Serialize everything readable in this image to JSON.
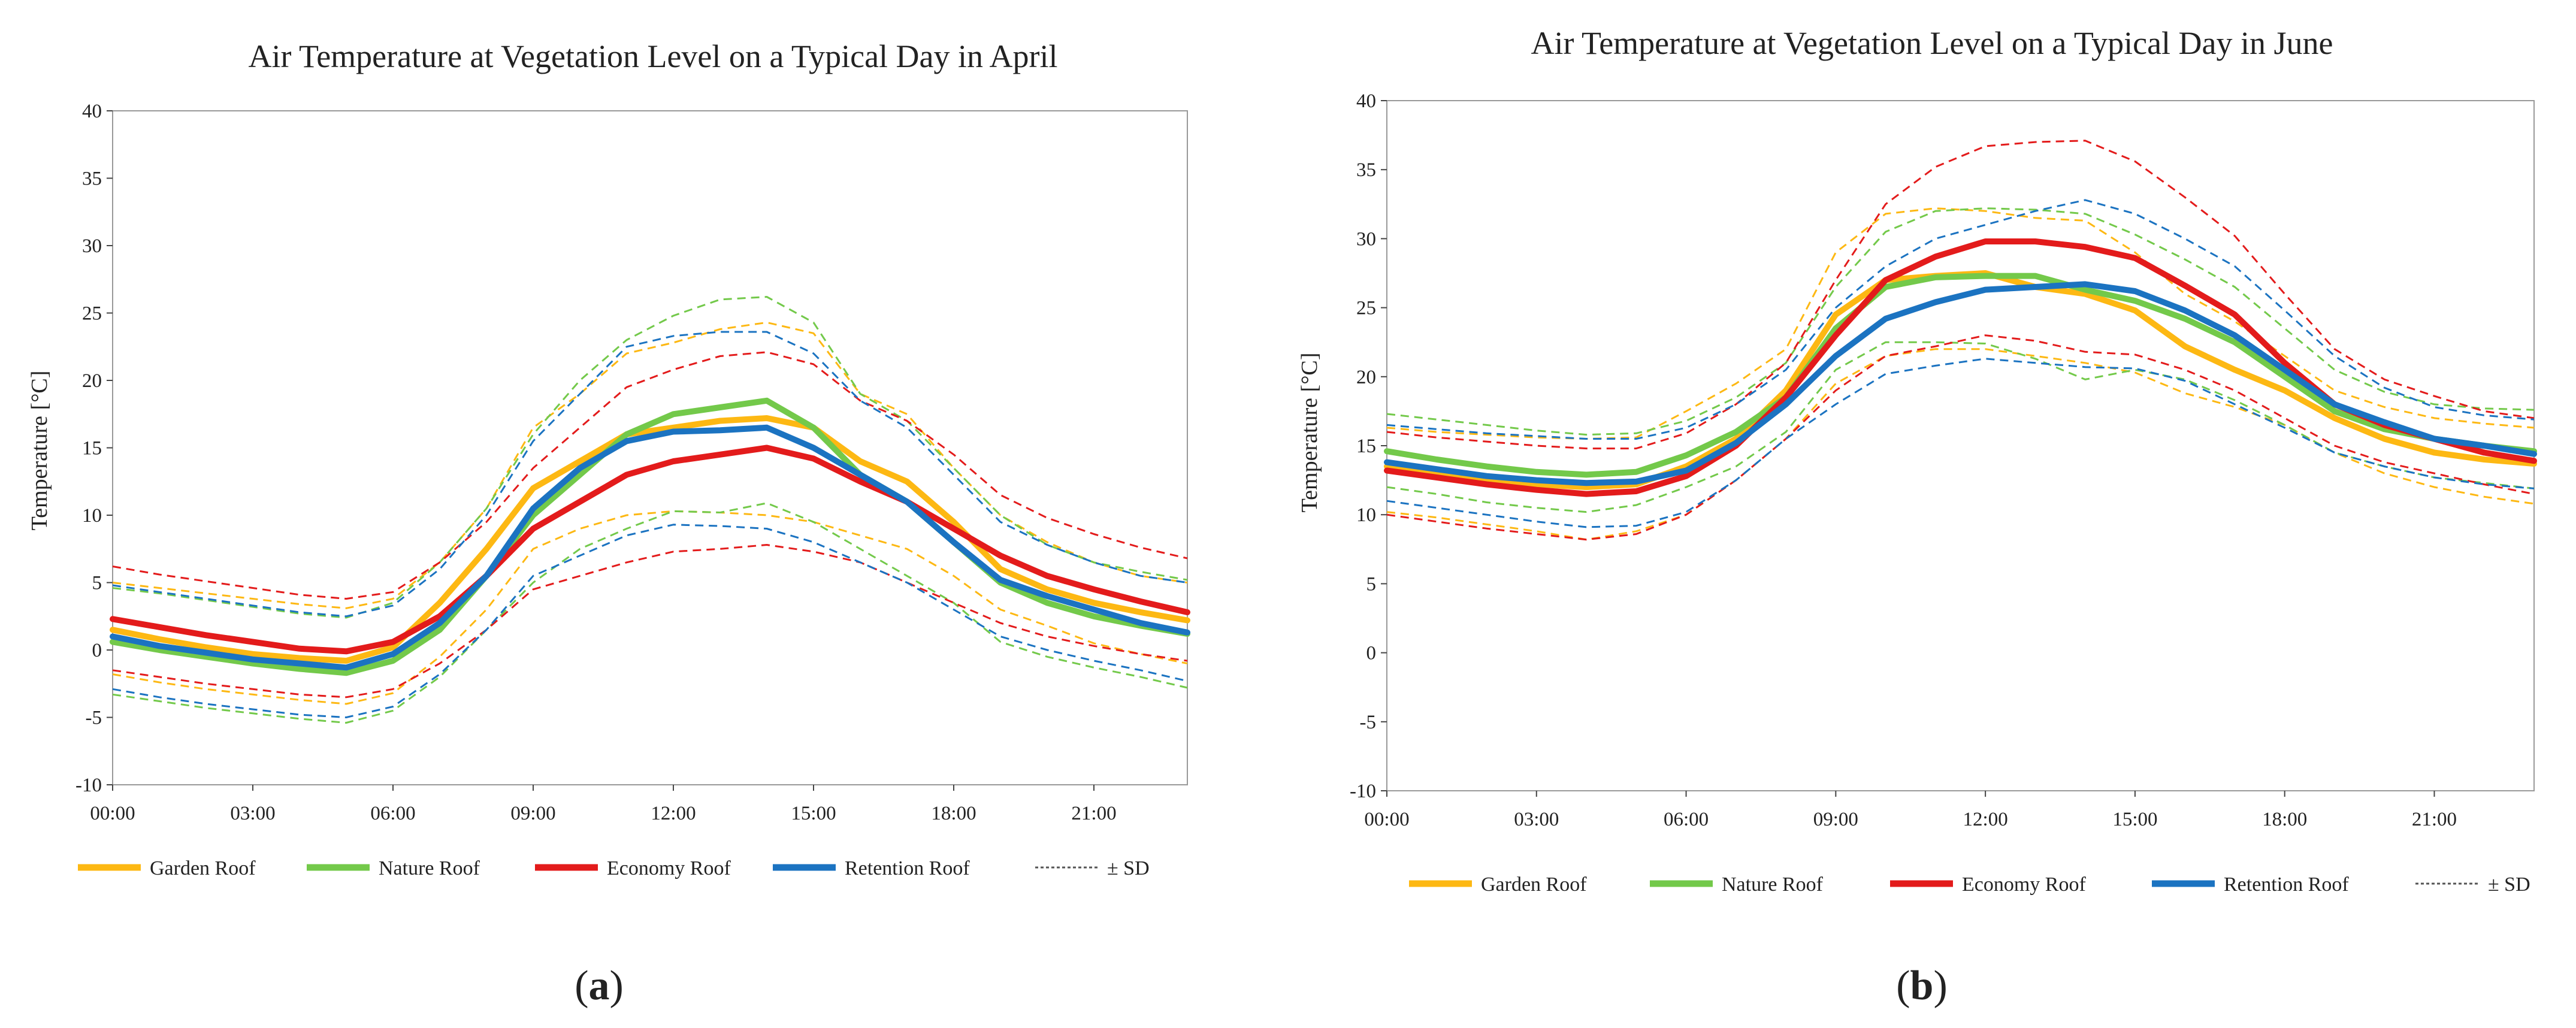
{
  "colors": {
    "garden": "#FDB813",
    "nature": "#73C94A",
    "economy": "#E31B1B",
    "retention": "#1B73C1",
    "sd": "#555555",
    "axis": "#444444",
    "grid": "#999999"
  },
  "legend": {
    "garden": "Garden Roof",
    "nature": "Nature Roof",
    "economy": "Economy Roof",
    "retention": "Retention Roof",
    "sd": "± SD"
  },
  "chart_data": [
    {
      "type": "line",
      "caption_letter": "a",
      "title": "Air Temperature at Vegetation Level on a Typical Day in April",
      "xlabel": "",
      "ylabel": "Temperature [°C]",
      "ylim": [
        -10,
        40
      ],
      "yticks": [
        -10,
        -5,
        0,
        5,
        10,
        15,
        20,
        25,
        30,
        35,
        40
      ],
      "xticks": [
        0,
        3,
        6,
        9,
        12,
        15,
        18,
        21
      ],
      "xtick_labels": [
        "00:00",
        "03:00",
        "06:00",
        "09:00",
        "12:00",
        "15:00",
        "18:00",
        "21:00"
      ],
      "xlim": [
        0,
        23
      ],
      "x": [
        0,
        1,
        2,
        3,
        4,
        5,
        6,
        7,
        8,
        9,
        10,
        11,
        12,
        13,
        14,
        15,
        16,
        17,
        18,
        19,
        20,
        21,
        22,
        23
      ],
      "series": [
        {
          "name": "Garden Roof",
          "color_key": "garden",
          "values": [
            1.5,
            0.8,
            0.2,
            -0.3,
            -0.6,
            -0.8,
            0.2,
            3.5,
            7.5,
            12.0,
            14.0,
            16.0,
            16.5,
            17.0,
            17.2,
            16.5,
            14.0,
            12.5,
            9.5,
            6.0,
            4.5,
            3.5,
            2.8,
            2.2
          ]
        },
        {
          "name": "Nature Roof",
          "color_key": "nature",
          "values": [
            0.6,
            0.0,
            -0.5,
            -1.0,
            -1.4,
            -1.7,
            -0.8,
            1.5,
            5.5,
            10.0,
            13.0,
            16.0,
            17.5,
            18.0,
            18.5,
            16.5,
            13.0,
            11.0,
            8.0,
            5.0,
            3.5,
            2.5,
            1.8,
            1.2
          ]
        },
        {
          "name": "Economy Roof",
          "color_key": "economy",
          "values": [
            2.3,
            1.7,
            1.1,
            0.6,
            0.1,
            -0.1,
            0.6,
            2.5,
            5.5,
            9.0,
            11.0,
            13.0,
            14.0,
            14.5,
            15.0,
            14.2,
            12.5,
            11.0,
            9.0,
            7.0,
            5.5,
            4.5,
            3.6,
            2.8
          ]
        },
        {
          "name": "Retention Roof",
          "color_key": "retention",
          "values": [
            1.0,
            0.3,
            -0.2,
            -0.7,
            -1.0,
            -1.3,
            -0.3,
            2.0,
            5.5,
            10.5,
            13.5,
            15.5,
            16.2,
            16.3,
            16.5,
            15.0,
            13.0,
            11.0,
            8.0,
            5.2,
            4.0,
            3.0,
            2.0,
            1.3
          ]
        }
      ],
      "sd_series": [
        {
          "name": "Garden Roof + SD",
          "color_key": "garden",
          "values": [
            5.0,
            4.6,
            4.2,
            3.8,
            3.4,
            3.1,
            3.8,
            6.5,
            10.5,
            16.5,
            19.0,
            22.0,
            22.8,
            23.8,
            24.3,
            23.5,
            19.0,
            17.5,
            13.5,
            10.0,
            8.0,
            6.5,
            5.5,
            5.0
          ]
        },
        {
          "name": "Garden Roof - SD",
          "color_key": "garden",
          "values": [
            -1.8,
            -2.4,
            -2.9,
            -3.3,
            -3.7,
            -4.0,
            -3.2,
            -0.5,
            3.0,
            7.5,
            9.0,
            10.0,
            10.3,
            10.2,
            10.0,
            9.5,
            8.5,
            7.5,
            5.5,
            3.0,
            1.8,
            0.5,
            -0.3,
            -1.0
          ]
        },
        {
          "name": "Nature Roof + SD",
          "color_key": "nature",
          "values": [
            4.6,
            4.2,
            3.7,
            3.2,
            2.7,
            2.4,
            3.5,
            6.5,
            10.5,
            16.0,
            20.0,
            23.0,
            24.8,
            26.0,
            26.2,
            24.3,
            19.0,
            17.0,
            13.5,
            10.0,
            7.8,
            6.5,
            5.8,
            5.2
          ]
        },
        {
          "name": "Nature Roof - SD",
          "color_key": "nature",
          "values": [
            -3.3,
            -3.8,
            -4.3,
            -4.7,
            -5.1,
            -5.4,
            -4.5,
            -2.0,
            1.5,
            5.0,
            7.5,
            9.0,
            10.3,
            10.2,
            10.9,
            9.5,
            7.5,
            5.5,
            3.5,
            0.6,
            -0.5,
            -1.3,
            -2.0,
            -2.8
          ]
        },
        {
          "name": "Economy Roof + SD",
          "color_key": "economy",
          "values": [
            6.2,
            5.6,
            5.1,
            4.6,
            4.1,
            3.8,
            4.3,
            6.5,
            9.5,
            13.5,
            16.5,
            19.5,
            20.8,
            21.8,
            22.1,
            21.2,
            18.5,
            17.0,
            14.5,
            11.5,
            9.8,
            8.6,
            7.6,
            6.8
          ]
        },
        {
          "name": "Economy Roof - SD",
          "color_key": "economy",
          "values": [
            -1.5,
            -2.0,
            -2.5,
            -2.9,
            -3.3,
            -3.5,
            -2.9,
            -1.0,
            1.5,
            4.5,
            5.5,
            6.5,
            7.3,
            7.5,
            7.8,
            7.3,
            6.5,
            5.0,
            3.5,
            2.0,
            1.0,
            0.3,
            -0.3,
            -0.8
          ]
        },
        {
          "name": "Retention Roof + SD",
          "color_key": "retention",
          "values": [
            4.8,
            4.3,
            3.8,
            3.3,
            2.8,
            2.5,
            3.3,
            6.0,
            10.0,
            15.5,
            19.0,
            22.5,
            23.3,
            23.6,
            23.6,
            22.0,
            18.5,
            16.5,
            13.0,
            9.5,
            7.8,
            6.5,
            5.5,
            5.0
          ]
        },
        {
          "name": "Retention Roof - SD",
          "color_key": "retention",
          "values": [
            -2.9,
            -3.5,
            -4.0,
            -4.4,
            -4.8,
            -5.0,
            -4.2,
            -1.8,
            1.5,
            5.5,
            7.0,
            8.5,
            9.3,
            9.2,
            9.0,
            8.0,
            6.5,
            5.0,
            3.0,
            1.0,
            0.0,
            -0.8,
            -1.5,
            -2.3
          ]
        }
      ]
    },
    {
      "type": "line",
      "caption_letter": "b",
      "title": "Air Temperature at Vegetation Level on a Typical Day in June",
      "xlabel": "",
      "ylabel": "Temperature [°C]",
      "ylim": [
        -10,
        40
      ],
      "yticks": [
        -10,
        -5,
        0,
        5,
        10,
        15,
        20,
        25,
        30,
        35,
        40
      ],
      "xticks": [
        0,
        3,
        6,
        9,
        12,
        15,
        18,
        21
      ],
      "xtick_labels": [
        "00:00",
        "03:00",
        "06:00",
        "09:00",
        "12:00",
        "15:00",
        "18:00",
        "21:00"
      ],
      "xlim": [
        0,
        23
      ],
      "x": [
        0,
        1,
        2,
        3,
        4,
        5,
        6,
        7,
        8,
        9,
        10,
        11,
        12,
        13,
        14,
        15,
        16,
        17,
        18,
        19,
        20,
        21,
        22,
        23
      ],
      "series": [
        {
          "name": "Garden Roof",
          "color_key": "garden",
          "values": [
            13.5,
            13.0,
            12.5,
            12.2,
            12.0,
            12.2,
            13.5,
            15.5,
            19.0,
            24.5,
            27.0,
            27.3,
            27.5,
            26.5,
            26.0,
            24.8,
            22.2,
            20.5,
            19.0,
            17.0,
            15.5,
            14.5,
            14.0,
            13.7
          ]
        },
        {
          "name": "Nature Roof",
          "color_key": "nature",
          "values": [
            14.6,
            14.0,
            13.5,
            13.1,
            12.9,
            13.1,
            14.3,
            16.0,
            18.5,
            23.5,
            26.5,
            27.2,
            27.3,
            27.3,
            26.3,
            25.5,
            24.2,
            22.5,
            20.0,
            17.5,
            16.2,
            15.5,
            15.0,
            14.6
          ]
        },
        {
          "name": "Economy Roof",
          "color_key": "economy",
          "values": [
            13.2,
            12.7,
            12.2,
            11.8,
            11.5,
            11.7,
            12.8,
            15.0,
            18.5,
            23.0,
            27.0,
            28.7,
            29.8,
            29.8,
            29.4,
            28.6,
            26.6,
            24.5,
            21.0,
            18.0,
            16.5,
            15.5,
            14.5,
            13.9
          ]
        },
        {
          "name": "Retention Roof",
          "color_key": "retention",
          "values": [
            13.8,
            13.3,
            12.8,
            12.5,
            12.3,
            12.4,
            13.2,
            15.2,
            18.0,
            21.5,
            24.2,
            25.4,
            26.3,
            26.5,
            26.7,
            26.2,
            24.8,
            23.0,
            20.5,
            18.0,
            16.7,
            15.5,
            15.0,
            14.4
          ]
        }
      ],
      "sd_series": [
        {
          "name": "Garden Roof + SD",
          "color_key": "garden",
          "values": [
            16.3,
            16.0,
            15.8,
            15.6,
            15.5,
            15.6,
            17.5,
            19.5,
            22.0,
            29.0,
            31.8,
            32.2,
            32.0,
            31.5,
            31.3,
            29.0,
            26.0,
            24.0,
            21.5,
            19.0,
            17.8,
            17.0,
            16.6,
            16.3
          ]
        },
        {
          "name": "Garden Roof - SD",
          "color_key": "garden",
          "values": [
            10.2,
            9.8,
            9.3,
            8.8,
            8.2,
            8.8,
            10.0,
            12.5,
            15.5,
            19.5,
            21.5,
            22.0,
            22.0,
            21.5,
            21.0,
            20.3,
            18.8,
            17.8,
            16.5,
            14.5,
            13.0,
            12.0,
            11.3,
            10.8
          ]
        },
        {
          "name": "Nature Roof + SD",
          "color_key": "nature",
          "values": [
            17.3,
            16.9,
            16.5,
            16.1,
            15.8,
            15.9,
            16.8,
            18.5,
            21.0,
            26.5,
            30.5,
            32.0,
            32.2,
            32.1,
            31.8,
            30.3,
            28.5,
            26.5,
            23.5,
            20.5,
            18.9,
            18.0,
            17.7,
            17.6
          ]
        },
        {
          "name": "Nature Roof - SD",
          "color_key": "nature",
          "values": [
            12.0,
            11.5,
            10.9,
            10.5,
            10.2,
            10.7,
            12.0,
            13.5,
            16.0,
            20.5,
            22.5,
            22.5,
            22.4,
            21.3,
            19.8,
            20.5,
            19.8,
            18.3,
            16.5,
            14.5,
            13.5,
            12.7,
            12.3,
            11.9
          ]
        },
        {
          "name": "Economy Roof + SD",
          "color_key": "economy",
          "values": [
            16.0,
            15.6,
            15.3,
            15.0,
            14.8,
            14.8,
            15.9,
            18.0,
            21.0,
            27.0,
            32.5,
            35.2,
            36.7,
            37.0,
            37.1,
            35.6,
            33.0,
            30.2,
            26.0,
            22.0,
            19.8,
            18.6,
            17.5,
            17.0
          ]
        },
        {
          "name": "Economy Roof - SD",
          "color_key": "economy",
          "values": [
            10.0,
            9.5,
            9.0,
            8.6,
            8.2,
            8.6,
            10.0,
            12.5,
            15.5,
            19.0,
            21.5,
            22.2,
            23.0,
            22.6,
            21.8,
            21.6,
            20.5,
            19.0,
            17.0,
            15.0,
            13.8,
            13.0,
            12.2,
            11.5
          ]
        },
        {
          "name": "Retention Roof + SD",
          "color_key": "retention",
          "values": [
            16.5,
            16.2,
            15.9,
            15.7,
            15.5,
            15.5,
            16.3,
            18.0,
            20.5,
            25.0,
            28.0,
            30.0,
            31.0,
            32.0,
            32.8,
            31.8,
            30.0,
            28.0,
            24.8,
            21.5,
            19.2,
            17.8,
            17.2,
            16.9
          ]
        },
        {
          "name": "Retention Roof - SD",
          "color_key": "retention",
          "values": [
            11.0,
            10.5,
            10.0,
            9.5,
            9.1,
            9.2,
            10.2,
            12.5,
            15.5,
            18.0,
            20.2,
            20.8,
            21.3,
            21.0,
            20.7,
            20.6,
            19.7,
            18.0,
            16.3,
            14.5,
            13.5,
            12.7,
            12.2,
            11.9
          ]
        }
      ]
    }
  ]
}
